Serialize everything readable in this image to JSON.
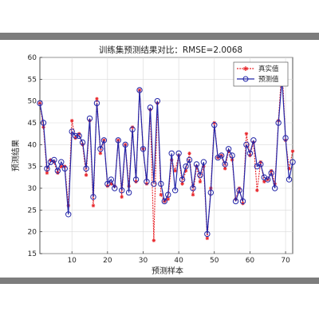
{
  "chart_data": {
    "type": "line",
    "title": "训练集预测结果对比：RMSE=2.0068",
    "xlabel": "预测样本",
    "ylabel": "预测结果",
    "xlim": [
      1,
      72
    ],
    "ylim": [
      15,
      60
    ],
    "x_ticks": [
      10,
      20,
      30,
      40,
      50,
      60,
      70
    ],
    "y_ticks": [
      15,
      20,
      25,
      30,
      35,
      40,
      45,
      50,
      55,
      60
    ],
    "grid": true,
    "legend_position": "top-right",
    "series": [
      {
        "name": "真实值",
        "color": "#e8262b",
        "marker": "star",
        "values": [
          49.5,
          44,
          33.5,
          36.5,
          36,
          33.5,
          35,
          35,
          26,
          45.5,
          41.5,
          42.5,
          40,
          33,
          45.5,
          26,
          50.5,
          38,
          41,
          30.5,
          31,
          30.5,
          41,
          28,
          40,
          30.5,
          44,
          31.5,
          52.5,
          39,
          31,
          48,
          18,
          49.5,
          28.5,
          27,
          27.5,
          36.5,
          34,
          37.5,
          31,
          34,
          38,
          28.5,
          35,
          31.5,
          35,
          18.5,
          30,
          45,
          37,
          37.5,
          34.5,
          38.5,
          36.5,
          27.5,
          30,
          26.5,
          42.5,
          37.5,
          40.5,
          29.5,
          36,
          31.5,
          32,
          34,
          31,
          45.5,
          58,
          41,
          34.5,
          38.5
        ]
      },
      {
        "name": "预测值",
        "color": "#2326a8",
        "marker": "circle",
        "values": [
          49.5,
          45,
          34.5,
          36,
          36.5,
          34,
          36,
          34.5,
          24,
          43,
          42,
          42,
          40.5,
          34.5,
          46,
          28,
          49.5,
          39,
          41,
          31,
          32,
          30,
          41,
          29.5,
          40,
          29,
          43.5,
          32,
          52.5,
          39,
          31.5,
          48.5,
          31,
          50,
          31,
          27,
          28.5,
          38,
          29.5,
          38,
          32,
          35,
          36.5,
          30,
          35.5,
          33,
          36,
          19.5,
          29,
          44.5,
          37,
          37.5,
          35.5,
          39,
          37.5,
          27,
          29.5,
          27,
          40,
          38,
          41,
          35,
          35.5,
          32.5,
          32,
          33.5,
          30,
          45,
          55,
          41.5,
          32,
          36
        ]
      }
    ]
  }
}
